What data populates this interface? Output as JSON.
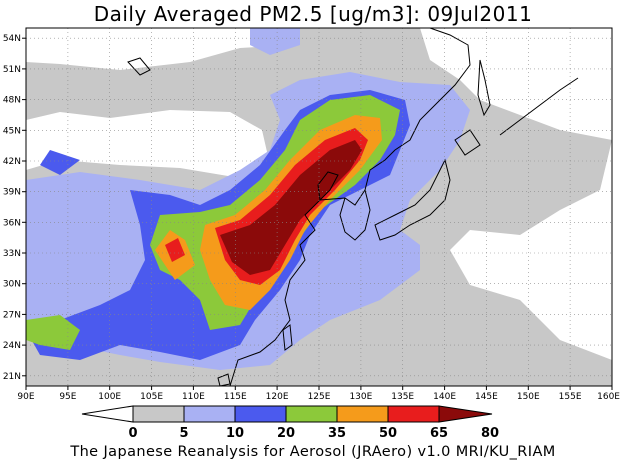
{
  "title": "Daily Averaged PM2.5 [ug/m3]: 09Jul2011",
  "credit": "The Japanese Reanalysis for Aerosol (JRAero) v1.0 MRI/KU_RIAM",
  "map": {
    "lon_range": [
      90,
      160
    ],
    "lat_range": [
      20,
      55
    ],
    "lon_ticks": [
      "90E",
      "95E",
      "100E",
      "105E",
      "110E",
      "115E",
      "120E",
      "125E",
      "130E",
      "135E",
      "140E",
      "145E",
      "150E",
      "155E",
      "160E"
    ],
    "lat_ticks": [
      "21N",
      "24N",
      "27N",
      "30N",
      "33N",
      "36N",
      "39N",
      "42N",
      "45N",
      "48N",
      "51N",
      "54N"
    ],
    "grid": true
  },
  "colorbar": {
    "levels": [
      "0",
      "5",
      "10",
      "20",
      "35",
      "50",
      "65",
      "80"
    ],
    "colors": [
      "#ffffff",
      "#c8c8c8",
      "#a9b1f3",
      "#4b5aee",
      "#8cc93a",
      "#f59b1b",
      "#e81d1d",
      "#8b0a0a"
    ]
  }
}
